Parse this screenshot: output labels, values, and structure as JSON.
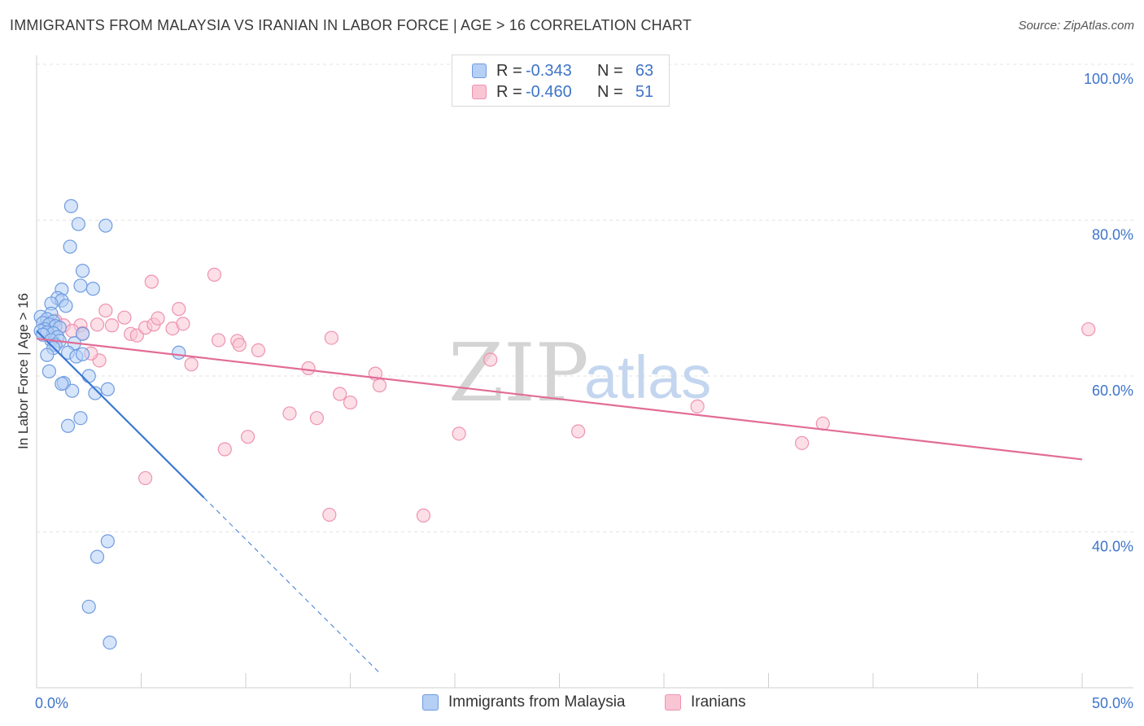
{
  "title": "IMMIGRANTS FROM MALAYSIA VS IRANIAN IN LABOR FORCE | AGE > 16 CORRELATION CHART",
  "source": "Source: ZipAtlas.com",
  "watermark": {
    "zip": "ZIP",
    "atlas": "atlas"
  },
  "legend": {
    "rows": [
      {
        "r_label": "R =",
        "r_value": "-0.343",
        "n_label": "N =",
        "n_value": "63"
      },
      {
        "r_label": "R =",
        "r_value": "-0.460",
        "n_label": "N =",
        "n_value": "51"
      }
    ]
  },
  "colors": {
    "malaysia_fill": "#b5cff5",
    "malaysia_stroke": "#6f9be0",
    "malaysia_line": "#3a78d4",
    "iranian_fill": "#f9c4d4",
    "iranian_stroke": "#ee92b0",
    "iranian_line": "#e26c96",
    "axis_label": "#3e74c9",
    "grid": "#e3e3e3"
  },
  "chart_data": {
    "type": "scatter",
    "title": "IMMIGRANTS FROM MALAYSIA VS IRANIAN IN LABOR FORCE | AGE > 16 CORRELATION CHART",
    "xlabel": "",
    "ylabel": "In Labor Force | Age > 16",
    "xlim": [
      0,
      50
    ],
    "ylim": [
      20,
      102
    ],
    "x_tick_labels": [
      "0.0%",
      "50.0%"
    ],
    "y_ticks": [
      40,
      60,
      80,
      100
    ],
    "y_tick_labels": [
      "40.0%",
      "60.0%",
      "80.0%",
      "100.0%"
    ],
    "grid": true,
    "legend_position": "top-center",
    "series": [
      {
        "name": "Immigrants from Malaysia",
        "R": -0.343,
        "N": 63,
        "points": [
          [
            1.65,
            81.8
          ],
          [
            2.0,
            79.5
          ],
          [
            3.3,
            79.3
          ],
          [
            1.6,
            76.6
          ],
          [
            2.2,
            73.5
          ],
          [
            2.1,
            71.6
          ],
          [
            2.7,
            71.2
          ],
          [
            1.2,
            71.1
          ],
          [
            1.0,
            70.0
          ],
          [
            1.2,
            69.7
          ],
          [
            0.7,
            69.3
          ],
          [
            1.4,
            69.0
          ],
          [
            0.7,
            68.0
          ],
          [
            0.2,
            67.6
          ],
          [
            0.5,
            67.3
          ],
          [
            0.8,
            67.0
          ],
          [
            0.3,
            66.8
          ],
          [
            0.6,
            66.6
          ],
          [
            0.9,
            66.4
          ],
          [
            1.1,
            66.2
          ],
          [
            0.4,
            66.0
          ],
          [
            0.2,
            65.8
          ],
          [
            0.5,
            65.6
          ],
          [
            0.8,
            65.5
          ],
          [
            0.3,
            65.3
          ],
          [
            2.2,
            65.4
          ],
          [
            1.0,
            65.0
          ],
          [
            0.7,
            64.6
          ],
          [
            1.1,
            64.5
          ],
          [
            0.9,
            64.0
          ],
          [
            1.8,
            64.2
          ],
          [
            0.8,
            63.6
          ],
          [
            1.5,
            63.0
          ],
          [
            1.9,
            62.5
          ],
          [
            0.5,
            62.7
          ],
          [
            2.2,
            62.8
          ],
          [
            6.8,
            63.0
          ],
          [
            0.6,
            60.6
          ],
          [
            2.5,
            60.0
          ],
          [
            1.3,
            59.1
          ],
          [
            1.2,
            59.0
          ],
          [
            1.7,
            58.1
          ],
          [
            3.4,
            58.3
          ],
          [
            2.8,
            57.8
          ],
          [
            2.1,
            54.6
          ],
          [
            1.5,
            53.6
          ],
          [
            3.4,
            38.8
          ],
          [
            2.9,
            36.8
          ],
          [
            2.5,
            30.4
          ],
          [
            3.5,
            25.8
          ]
        ],
        "trend": {
          "x": [
            0,
            8.0
          ],
          "y": [
            65.8,
            44.4
          ],
          "dashed_to": [
            16.4,
            21.9
          ]
        }
      },
      {
        "name": "Iranians",
        "R": -0.46,
        "N": 51,
        "points": [
          [
            0.9,
            67.1
          ],
          [
            1.3,
            66.5
          ],
          [
            2.1,
            66.5
          ],
          [
            2.9,
            66.6
          ],
          [
            3.3,
            68.4
          ],
          [
            3.6,
            66.5
          ],
          [
            4.2,
            67.5
          ],
          [
            4.5,
            65.4
          ],
          [
            4.8,
            65.2
          ],
          [
            5.2,
            66.2
          ],
          [
            5.6,
            66.6
          ],
          [
            5.5,
            72.1
          ],
          [
            5.8,
            67.4
          ],
          [
            6.5,
            66.1
          ],
          [
            6.8,
            68.6
          ],
          [
            7.0,
            66.7
          ],
          [
            7.4,
            61.5
          ],
          [
            8.5,
            73.0
          ],
          [
            2.2,
            65.5
          ],
          [
            3.0,
            62.0
          ],
          [
            2.6,
            62.9
          ],
          [
            1.7,
            65.8
          ],
          [
            8.7,
            64.6
          ],
          [
            9.6,
            64.5
          ],
          [
            9.7,
            64.0
          ],
          [
            10.6,
            63.3
          ],
          [
            14.1,
            64.9
          ],
          [
            13.0,
            61.0
          ],
          [
            16.2,
            60.3
          ],
          [
            16.4,
            58.8
          ],
          [
            14.5,
            57.7
          ],
          [
            15.0,
            56.6
          ],
          [
            12.1,
            55.2
          ],
          [
            13.4,
            54.6
          ],
          [
            10.1,
            52.2
          ],
          [
            9.0,
            50.6
          ],
          [
            5.2,
            46.9
          ],
          [
            14.0,
            42.2
          ],
          [
            18.5,
            42.1
          ],
          [
            21.7,
            62.1
          ],
          [
            20.2,
            52.6
          ],
          [
            25.9,
            52.9
          ],
          [
            31.6,
            56.1
          ],
          [
            36.6,
            51.4
          ],
          [
            37.6,
            53.9
          ],
          [
            50.3,
            66.0
          ]
        ],
        "trend": {
          "x": [
            0,
            50
          ],
          "y": [
            64.8,
            49.3
          ]
        }
      }
    ]
  }
}
